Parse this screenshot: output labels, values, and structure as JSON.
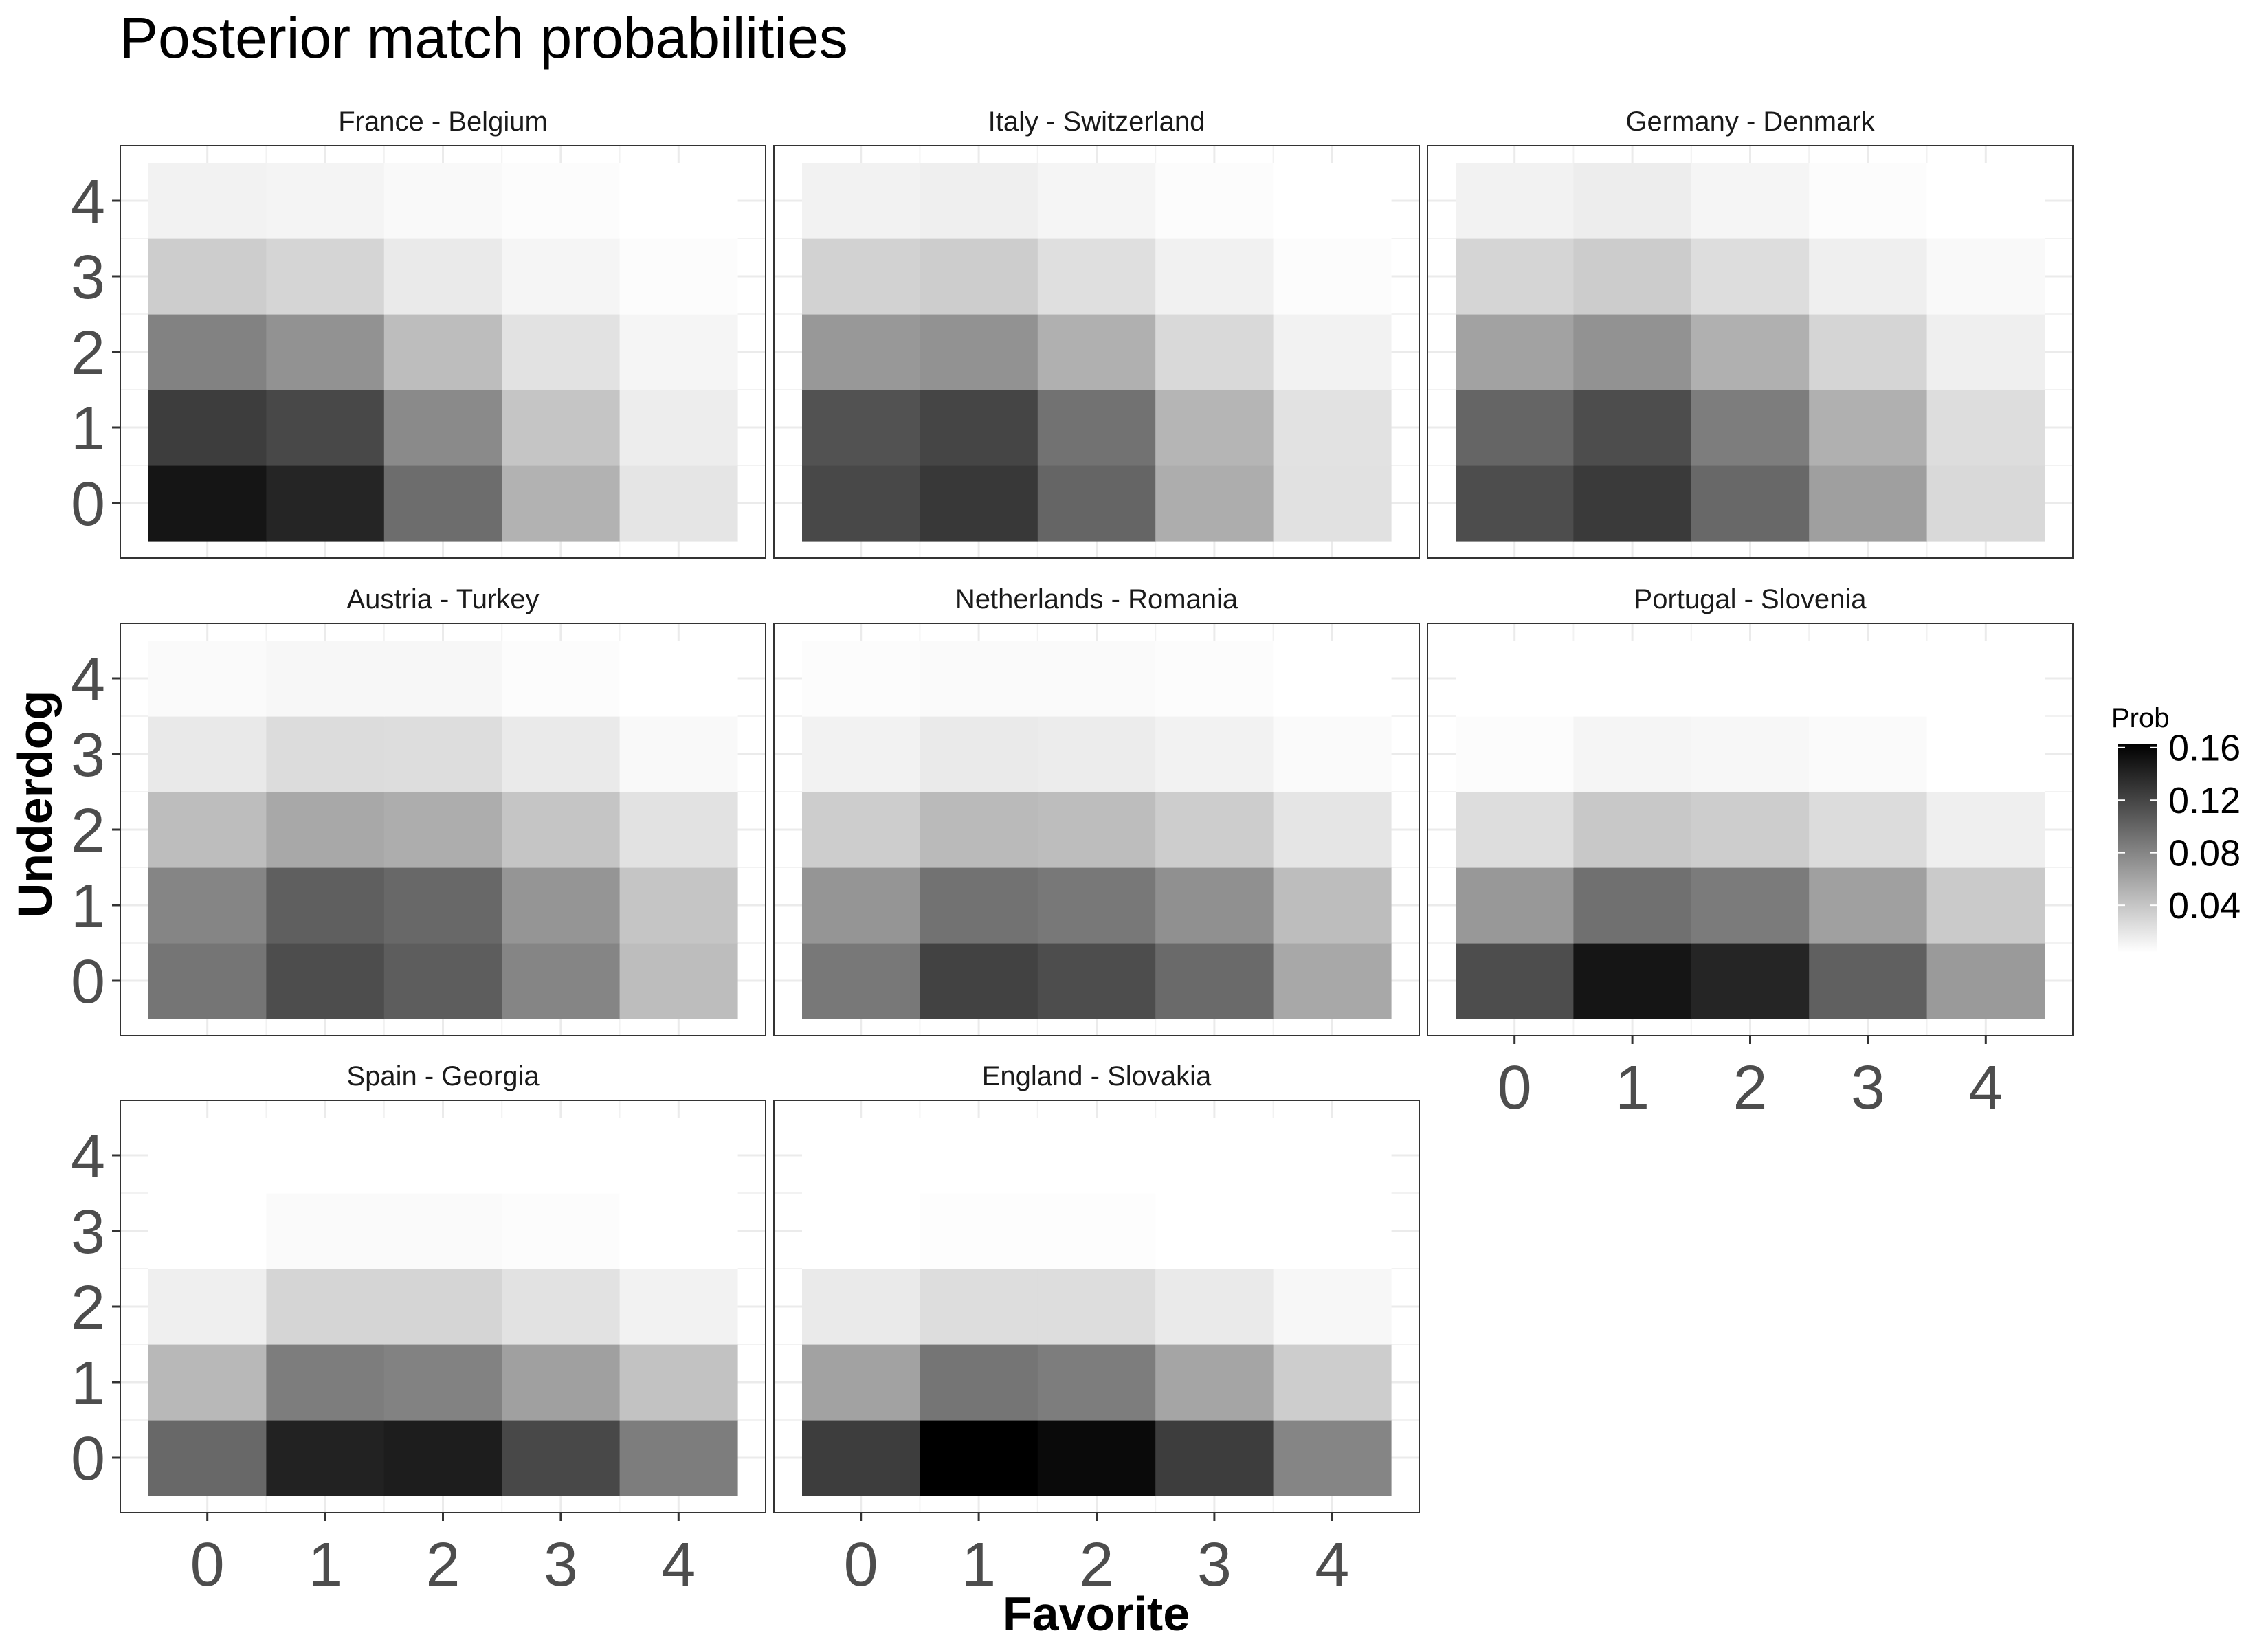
{
  "chart_data": {
    "type": "heatmap",
    "title": "Posterior match probabilities",
    "xlabel": "Favorite",
    "ylabel": "Underdog",
    "x_ticks": [
      "0",
      "1",
      "2",
      "3",
      "4"
    ],
    "y_ticks": [
      "0",
      "1",
      "2",
      "3",
      "4"
    ],
    "color_scale": {
      "title": "Prob",
      "low_color": "#ffffff",
      "high_color": "#000000",
      "min": 0.004,
      "max": 0.163,
      "breaks": [
        0.04,
        0.08,
        0.12,
        0.16
      ],
      "break_labels": [
        "0.04",
        "0.08",
        "0.12",
        "0.16"
      ]
    },
    "grid": true,
    "legend_position": "right",
    "value_layout": "rows indexed by Underdog score (0 to 4), columns by Favorite score (0 to 4)",
    "panels": [
      {
        "name": "France - Belgium",
        "values": [
          [
            0.15,
            0.14,
            0.095,
            0.052,
            0.02
          ],
          [
            0.125,
            0.118,
            0.077,
            0.04,
            0.015
          ],
          [
            0.082,
            0.072,
            0.045,
            0.022,
            0.01
          ],
          [
            0.035,
            0.03,
            0.017,
            0.01,
            0.006
          ],
          [
            0.012,
            0.011,
            0.008,
            0.006,
            0.004
          ]
        ]
      },
      {
        "name": "Italy - Switzerland",
        "values": [
          [
            0.118,
            0.128,
            0.1,
            0.055,
            0.023
          ],
          [
            0.112,
            0.12,
            0.092,
            0.05,
            0.022
          ],
          [
            0.068,
            0.072,
            0.053,
            0.028,
            0.012
          ],
          [
            0.032,
            0.035,
            0.024,
            0.013,
            0.006
          ],
          [
            0.012,
            0.014,
            0.01,
            0.006,
            0.004
          ]
        ]
      },
      {
        "name": "Germany - Denmark",
        "values": [
          [
            0.115,
            0.127,
            0.098,
            0.064,
            0.028
          ],
          [
            0.1,
            0.115,
            0.085,
            0.053,
            0.025
          ],
          [
            0.062,
            0.072,
            0.053,
            0.03,
            0.014
          ],
          [
            0.03,
            0.036,
            0.025,
            0.014,
            0.008
          ],
          [
            0.012,
            0.015,
            0.01,
            0.006,
            0.004
          ]
        ]
      },
      {
        "name": "Austria - Turkey",
        "values": [
          [
            0.09,
            0.115,
            0.105,
            0.08,
            0.045
          ],
          [
            0.08,
            0.104,
            0.098,
            0.07,
            0.04
          ],
          [
            0.045,
            0.058,
            0.055,
            0.04,
            0.022
          ],
          [
            0.018,
            0.026,
            0.025,
            0.017,
            0.008
          ],
          [
            0.007,
            0.009,
            0.009,
            0.006,
            0.004
          ]
        ]
      },
      {
        "name": "Netherlands - Romania",
        "values": [
          [
            0.088,
            0.122,
            0.115,
            0.097,
            0.058
          ],
          [
            0.07,
            0.092,
            0.088,
            0.073,
            0.045
          ],
          [
            0.035,
            0.047,
            0.045,
            0.035,
            0.02
          ],
          [
            0.012,
            0.017,
            0.016,
            0.012,
            0.007
          ],
          [
            0.006,
            0.007,
            0.007,
            0.006,
            0.004
          ]
        ]
      },
      {
        "name": "Portugal - Slovenia",
        "values": [
          [
            0.115,
            0.15,
            0.14,
            0.103,
            0.067
          ],
          [
            0.068,
            0.093,
            0.086,
            0.063,
            0.037
          ],
          [
            0.025,
            0.038,
            0.035,
            0.026,
            0.014
          ],
          [
            0.006,
            0.01,
            0.009,
            0.007,
            0.004
          ],
          [
            0.004,
            0.004,
            0.004,
            0.004,
            0.004
          ]
        ]
      },
      {
        "name": "Spain - Georgia",
        "values": [
          [
            0.098,
            0.142,
            0.145,
            0.118,
            0.085
          ],
          [
            0.048,
            0.085,
            0.082,
            0.063,
            0.042
          ],
          [
            0.014,
            0.03,
            0.03,
            0.022,
            0.012
          ],
          [
            0.004,
            0.007,
            0.007,
            0.006,
            0.004
          ],
          [
            0.004,
            0.004,
            0.004,
            0.004,
            0.004
          ]
        ]
      },
      {
        "name": "England - Slovakia",
        "values": [
          [
            0.125,
            0.163,
            0.157,
            0.125,
            0.08
          ],
          [
            0.062,
            0.09,
            0.085,
            0.06,
            0.035
          ],
          [
            0.017,
            0.025,
            0.025,
            0.017,
            0.009
          ],
          [
            0.004,
            0.005,
            0.005,
            0.004,
            0.004
          ],
          [
            0.004,
            0.004,
            0.004,
            0.004,
            0.004
          ]
        ]
      }
    ]
  }
}
